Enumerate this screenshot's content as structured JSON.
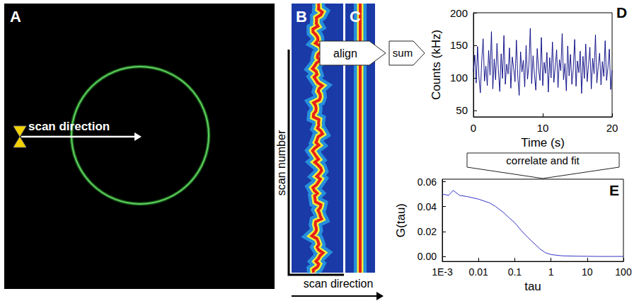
{
  "panels": {
    "A": {
      "label": "A",
      "annotation": "scan direction"
    },
    "B": {
      "label": "B",
      "y_label": "scan number",
      "x_label": "scan direction"
    },
    "C": {
      "label": "C"
    },
    "D": {
      "label": "D"
    },
    "E": {
      "label": "E"
    }
  },
  "arrows": [
    "align",
    "sum",
    "correlate and fit"
  ],
  "chart_data": [
    {
      "type": "line",
      "xlabel": "Time (s)",
      "ylabel": "Counts (kHz)",
      "color": "#000080",
      "x": [
        0,
        0.2,
        0.4,
        0.6,
        0.8,
        1,
        1.2,
        1.4,
        1.6,
        1.8,
        2,
        2.2,
        2.4,
        2.6,
        2.8,
        3,
        3.2,
        3.4,
        3.6,
        3.8,
        4,
        4.2,
        4.4,
        4.6,
        4.8,
        5,
        5.2,
        5.4,
        5.6,
        5.8,
        6,
        6.2,
        6.4,
        6.6,
        6.8,
        7,
        7.2,
        7.4,
        7.6,
        7.8,
        8,
        8.2,
        8.4,
        8.6,
        8.8,
        9,
        9.2,
        9.4,
        9.6,
        9.8,
        10,
        10.2,
        10.4,
        10.6,
        10.8,
        11,
        11.2,
        11.4,
        11.6,
        11.8,
        12,
        12.2,
        12.4,
        12.6,
        12.8,
        13,
        13.2,
        13.4,
        13.6,
        13.8,
        14,
        14.2,
        14.4,
        14.6,
        14.8,
        15,
        15.2,
        15.4,
        15.6,
        15.8,
        16,
        16.2,
        16.4,
        16.6,
        16.8,
        17,
        17.2,
        17.4,
        17.6,
        17.8,
        18,
        18.2,
        18.4,
        18.6,
        18.8,
        19,
        19.2,
        19.4,
        19.6,
        19.8,
        20
      ],
      "values": [
        110,
        135,
        92,
        148,
        101,
        77,
        126,
        160,
        95,
        118,
        88,
        142,
        104,
        171,
        83,
        129,
        97,
        153,
        112,
        79,
        137,
        99,
        165,
        90,
        121,
        106,
        146,
        84,
        132,
        115,
        94,
        158,
        102,
        73,
        140,
        109,
        127,
        86,
        150,
        98,
        119,
        176,
        91,
        134,
        105,
        81,
        145,
        113,
        96,
        162,
        88,
        124,
        107,
        139,
        78,
        131,
        100,
        155,
        93,
        117,
        143,
        85,
        128,
        111,
        168,
        97,
        122,
        80,
        149,
        103,
        136,
        90,
        114,
        159,
        87,
        126,
        108,
        141,
        76,
        133,
        99,
        152,
        94,
        120,
        147,
        83,
        130,
        106,
        166,
        92,
        118,
        138,
        89,
        125,
        102,
        157,
        96,
        116,
        144,
        82,
        112
      ],
      "xlim": [
        0,
        20
      ],
      "xticks": [
        0,
        10,
        20
      ],
      "ylim": [
        40,
        200
      ],
      "yticks": [
        50,
        100,
        150,
        200
      ],
      "grid": false
    },
    {
      "type": "line",
      "xlabel": "tau",
      "ylabel": "G(tau)",
      "color": "#1f1fbf",
      "log": "x",
      "x": [
        0.001,
        0.0015,
        0.002,
        0.003,
        0.005,
        0.01,
        0.02,
        0.03,
        0.05,
        0.07,
        0.1,
        0.15,
        0.2,
        0.3,
        0.5,
        0.7,
        1,
        2,
        5,
        10,
        20,
        50,
        100
      ],
      "values": [
        0.05,
        0.049,
        0.053,
        0.049,
        0.048,
        0.046,
        0.043,
        0.04,
        0.035,
        0.031,
        0.027,
        0.021,
        0.017,
        0.012,
        0.006,
        0.003,
        0.0015,
        0.0005,
        0.0002,
        0.0001,
        0,
        0,
        0
      ],
      "xlim": [
        0.001,
        100
      ],
      "xticks": [
        {
          "value": 0.001,
          "label": "1E-3"
        },
        0.01,
        0.1,
        1,
        10,
        100
      ],
      "ylim": [
        -0.004,
        0.062
      ],
      "yticks": [
        {
          "value": 0,
          "label": "0.00"
        },
        0.02,
        0.04,
        0.06
      ],
      "grid": false
    }
  ]
}
